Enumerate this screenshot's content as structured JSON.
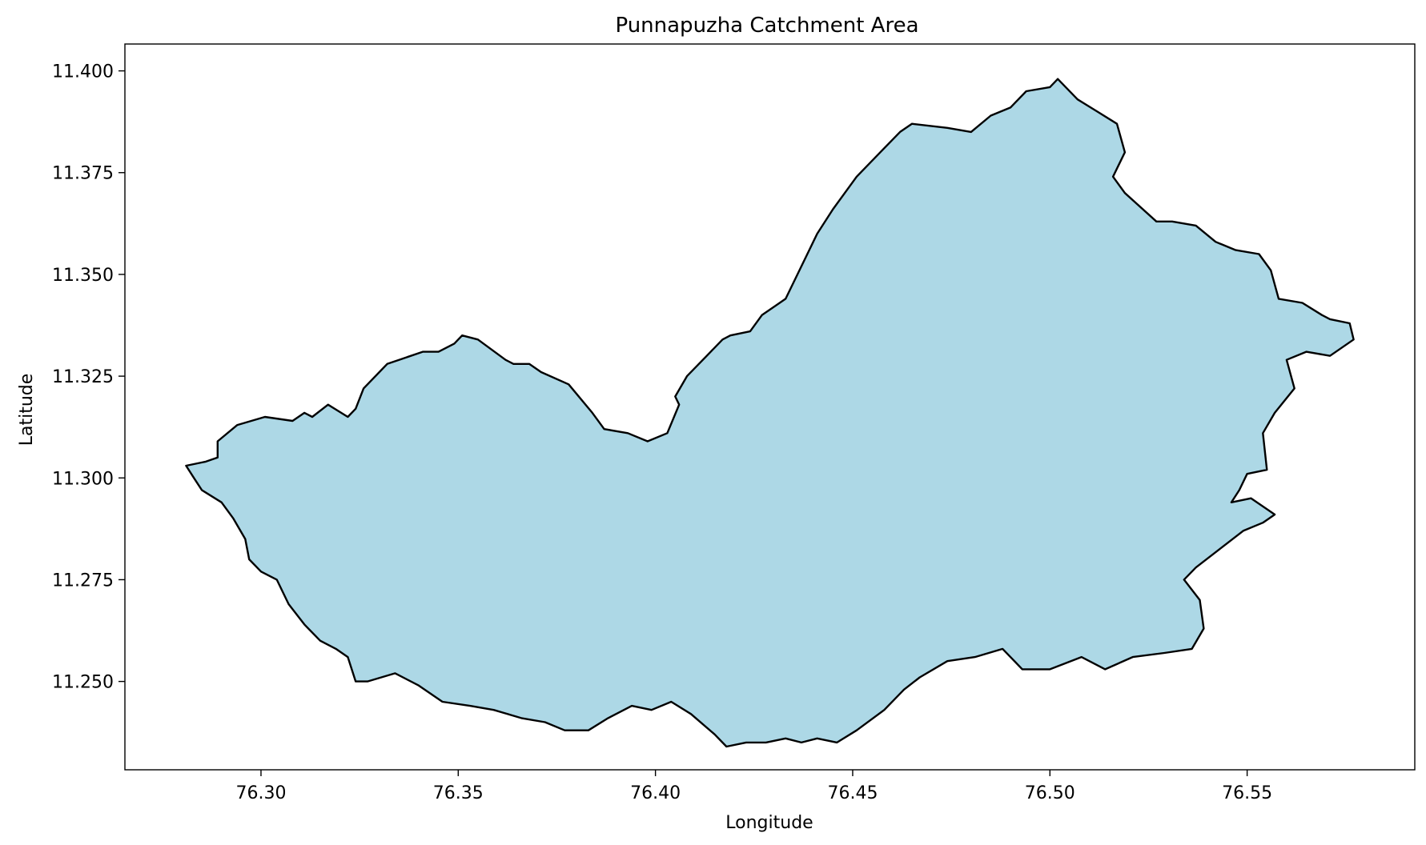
{
  "chart_data": {
    "type": "area",
    "title": "Punnapuzha Catchment Area",
    "xlabel": "Longitude",
    "ylabel": "Latitude",
    "xlim": [
      76.2655,
      76.5925
    ],
    "ylim": [
      11.2283,
      11.4066
    ],
    "xticks": [
      76.3,
      76.35,
      76.4,
      76.45,
      76.5,
      76.55
    ],
    "xtick_labels": [
      "76.30",
      "76.35",
      "76.40",
      "76.45",
      "76.50",
      "76.55"
    ],
    "yticks": [
      11.25,
      11.275,
      11.3,
      11.325,
      11.35,
      11.375,
      11.4
    ],
    "ytick_labels": [
      "11.250",
      "11.275",
      "11.300",
      "11.325",
      "11.350",
      "11.375",
      "11.400"
    ],
    "grid": false,
    "fill_color": "#add8e6",
    "edge_color": "#000000",
    "series": [
      {
        "x": [
          76.281,
          76.286,
          76.289,
          76.289,
          76.294,
          76.301,
          76.308,
          76.311,
          76.313,
          76.317,
          76.322,
          76.324,
          76.326,
          76.33,
          76.332,
          76.335,
          76.341,
          76.345,
          76.349,
          76.351,
          76.355,
          76.362,
          76.364,
          76.368,
          76.371,
          76.378,
          76.384,
          76.387,
          76.393,
          76.398,
          76.403,
          76.406,
          76.405,
          76.408,
          76.413,
          76.417,
          76.419,
          76.424,
          76.427,
          76.433,
          76.436,
          76.439,
          76.441,
          76.445,
          76.451,
          76.457,
          76.462,
          76.465,
          76.474,
          76.48,
          76.485,
          76.49,
          76.494,
          76.5,
          76.502,
          76.507,
          76.512,
          76.517,
          76.519,
          76.516,
          76.519,
          76.527,
          76.531,
          76.537,
          76.542,
          76.547,
          76.553,
          76.556,
          76.558,
          76.564,
          76.569,
          76.571,
          76.576,
          76.577,
          76.571,
          76.565,
          76.56,
          76.562,
          76.557,
          76.554,
          76.555,
          76.55,
          76.548,
          76.546,
          76.551,
          76.557,
          76.554,
          76.549,
          76.545,
          76.541,
          76.537,
          76.534,
          76.538,
          76.539,
          76.536,
          76.529,
          76.521,
          76.514,
          76.508,
          76.5,
          76.493,
          76.488,
          76.481,
          76.474,
          76.467,
          76.463,
          76.458,
          76.451,
          76.446,
          76.441,
          76.437,
          76.433,
          76.428,
          76.423,
          76.418,
          76.415,
          76.409,
          76.404,
          76.399,
          76.394,
          76.388,
          76.383,
          76.377,
          76.372,
          76.366,
          76.359,
          76.353,
          76.346,
          76.34,
          76.334,
          76.327,
          76.324,
          76.322,
          76.319,
          76.315,
          76.311,
          76.307,
          76.304,
          76.3,
          76.297,
          76.296,
          76.293,
          76.29,
          76.285,
          76.283
        ],
        "y": [
          11.303,
          11.304,
          11.305,
          11.309,
          11.313,
          11.315,
          11.314,
          11.316,
          11.315,
          11.318,
          11.315,
          11.317,
          11.322,
          11.326,
          11.328,
          11.329,
          11.331,
          11.331,
          11.333,
          11.335,
          11.334,
          11.329,
          11.328,
          11.328,
          11.326,
          11.323,
          11.316,
          11.312,
          11.311,
          11.309,
          11.311,
          11.318,
          11.32,
          11.325,
          11.33,
          11.334,
          11.335,
          11.336,
          11.34,
          11.344,
          11.35,
          11.356,
          11.36,
          11.366,
          11.374,
          11.38,
          11.385,
          11.387,
          11.386,
          11.385,
          11.389,
          11.391,
          11.395,
          11.396,
          11.398,
          11.393,
          11.39,
          11.387,
          11.38,
          11.374,
          11.37,
          11.363,
          11.363,
          11.362,
          11.358,
          11.356,
          11.355,
          11.351,
          11.344,
          11.343,
          11.34,
          11.339,
          11.338,
          11.334,
          11.33,
          11.331,
          11.329,
          11.322,
          11.316,
          11.311,
          11.302,
          11.301,
          11.297,
          11.294,
          11.295,
          11.291,
          11.289,
          11.287,
          11.284,
          11.281,
          11.278,
          11.275,
          11.27,
          11.263,
          11.258,
          11.257,
          11.256,
          11.253,
          11.256,
          11.253,
          11.253,
          11.258,
          11.256,
          11.255,
          11.251,
          11.248,
          11.243,
          11.238,
          11.235,
          11.236,
          11.235,
          11.236,
          11.235,
          11.235,
          11.234,
          11.237,
          11.242,
          11.245,
          11.243,
          11.244,
          11.241,
          11.238,
          11.238,
          11.24,
          11.241,
          11.243,
          11.244,
          11.245,
          11.249,
          11.252,
          11.25,
          11.25,
          11.256,
          11.258,
          11.26,
          11.264,
          11.269,
          11.275,
          11.277,
          11.28,
          11.285,
          11.29,
          11.294,
          11.297,
          11.3
        ]
      }
    ]
  }
}
